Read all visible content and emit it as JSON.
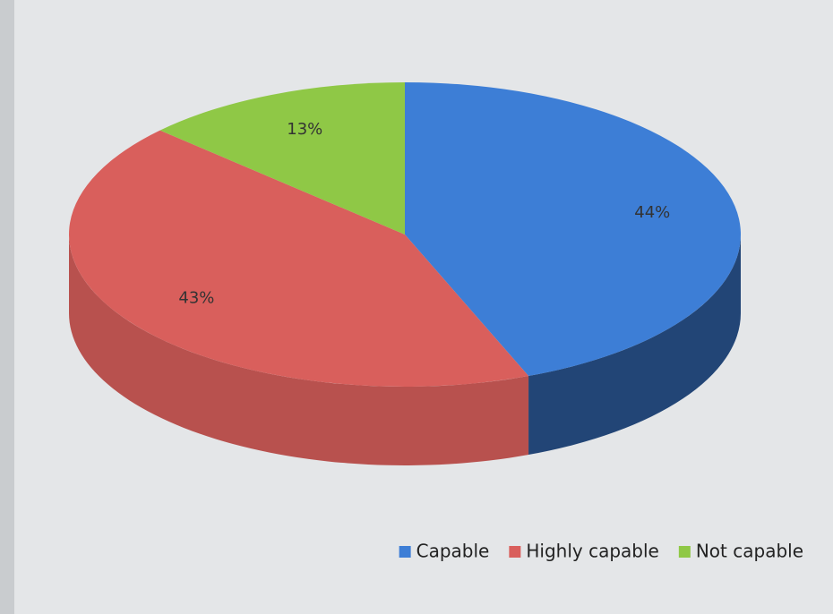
{
  "chart_data": {
    "type": "pie",
    "categories": [
      "Capable",
      "Highly capable",
      "Not capable"
    ],
    "values": [
      44,
      43,
      13
    ],
    "value_labels": [
      "44%",
      "43%",
      "13%"
    ],
    "colors": [
      "#3d7ed6",
      "#d95f5c",
      "#8fc846"
    ],
    "legend": "bottom-right"
  }
}
